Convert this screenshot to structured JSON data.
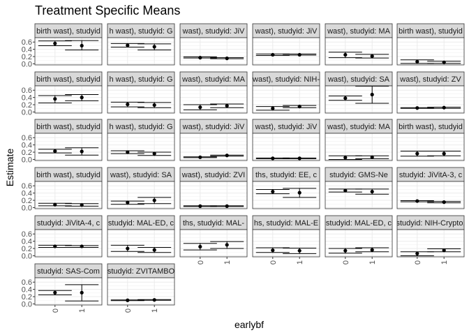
{
  "chart_data": {
    "type": "scatter",
    "title": "Treatment Specific Means",
    "xlabel": "earlybf",
    "ylabel": "Estimate",
    "x_categories": [
      "0",
      "1"
    ],
    "ylim": [
      -0.03,
      0.72
    ],
    "y_ticks": [
      "0.0",
      "0.2",
      "0.4",
      "0.6"
    ],
    "grid": true,
    "panels": [
      {
        "strip": "birth wast), studyid",
        "values": [
          {
            "x": "0",
            "y": 0.56,
            "lo": 0.5,
            "hi": 0.63
          },
          {
            "x": "1",
            "y": 0.5,
            "lo": 0.38,
            "hi": 0.64
          }
        ]
      },
      {
        "strip": "h wast), studyid: G",
        "values": [
          {
            "x": "0",
            "y": 0.51,
            "lo": 0.46,
            "hi": 0.56
          },
          {
            "x": "1",
            "y": 0.47,
            "lo": 0.38,
            "hi": 0.55
          }
        ]
      },
      {
        "strip": "wast), studyid: JiV",
        "values": [
          {
            "x": "0",
            "y": 0.17,
            "lo": 0.16,
            "hi": 0.19
          },
          {
            "x": "1",
            "y": 0.15,
            "lo": 0.14,
            "hi": 0.17
          }
        ]
      },
      {
        "strip": "wast), studyid: JiV",
        "values": [
          {
            "x": "0",
            "y": 0.25,
            "lo": 0.23,
            "hi": 0.27
          },
          {
            "x": "1",
            "y": 0.25,
            "lo": 0.24,
            "hi": 0.27
          }
        ]
      },
      {
        "strip": "wast), studyid: MA",
        "values": [
          {
            "x": "0",
            "y": 0.25,
            "lo": 0.17,
            "hi": 0.32
          },
          {
            "x": "1",
            "y": 0.21,
            "lo": 0.16,
            "hi": 0.26
          }
        ]
      },
      {
        "strip": "birth wast), studyid",
        "values": [
          {
            "x": "0",
            "y": 0.06,
            "lo": 0.01,
            "hi": 0.11
          },
          {
            "x": "1",
            "y": 0.04,
            "lo": 0.01,
            "hi": 0.07
          }
        ]
      },
      {
        "strip": "birth wast), studyid",
        "values": [
          {
            "x": "0",
            "y": 0.36,
            "lo": 0.25,
            "hi": 0.45
          },
          {
            "x": "1",
            "y": 0.4,
            "lo": 0.31,
            "hi": 0.48
          }
        ]
      },
      {
        "strip": "h wast), studyid: G",
        "values": [
          {
            "x": "0",
            "y": 0.21,
            "lo": 0.14,
            "hi": 0.27
          },
          {
            "x": "1",
            "y": 0.19,
            "lo": 0.12,
            "hi": 0.26
          }
        ]
      },
      {
        "strip": "wast), studyid: MA",
        "values": [
          {
            "x": "0",
            "y": 0.13,
            "lo": 0.06,
            "hi": 0.2
          },
          {
            "x": "1",
            "y": 0.17,
            "lo": 0.12,
            "hi": 0.22
          }
        ]
      },
      {
        "strip": "wast), studyid: NIH-",
        "values": [
          {
            "x": "0",
            "y": 0.1,
            "lo": 0.05,
            "hi": 0.15
          },
          {
            "x": "1",
            "y": 0.15,
            "lo": 0.12,
            "hi": 0.18
          }
        ]
      },
      {
        "strip": "wast), studyid: SA",
        "values": [
          {
            "x": "0",
            "y": 0.38,
            "lo": 0.32,
            "hi": 0.44
          },
          {
            "x": "1",
            "y": 0.48,
            "lo": 0.24,
            "hi": 0.71
          }
        ]
      },
      {
        "strip": "wast), studyid: ZV",
        "values": [
          {
            "x": "0",
            "y": 0.11,
            "lo": 0.1,
            "hi": 0.12
          },
          {
            "x": "1",
            "y": 0.12,
            "lo": 0.1,
            "hi": 0.13
          }
        ]
      },
      {
        "strip": "birth wast), studyid",
        "values": [
          {
            "x": "0",
            "y": 0.23,
            "lo": 0.18,
            "hi": 0.28
          },
          {
            "x": "1",
            "y": 0.22,
            "lo": 0.12,
            "hi": 0.32
          }
        ]
      },
      {
        "strip": "h wast), studyid: G",
        "values": [
          {
            "x": "0",
            "y": 0.2,
            "lo": 0.16,
            "hi": 0.24
          },
          {
            "x": "1",
            "y": 0.16,
            "lo": 0.11,
            "hi": 0.2
          }
        ]
      },
      {
        "strip": "wast), studyid: JiV",
        "values": [
          {
            "x": "0",
            "y": 0.06,
            "lo": 0.05,
            "hi": 0.07
          },
          {
            "x": "1",
            "y": 0.11,
            "lo": 0.09,
            "hi": 0.12
          }
        ]
      },
      {
        "strip": "wast), studyid: JiV",
        "values": [
          {
            "x": "0",
            "y": 0.03,
            "lo": 0.02,
            "hi": 0.04
          },
          {
            "x": "1",
            "y": 0.03,
            "lo": 0.02,
            "hi": 0.04
          }
        ]
      },
      {
        "strip": "wast), studyid: MA",
        "values": [
          {
            "x": "0",
            "y": 0.05,
            "lo": 0.0,
            "hi": 0.1
          },
          {
            "x": "1",
            "y": 0.06,
            "lo": 0.02,
            "hi": 0.1
          }
        ]
      },
      {
        "strip": "birth wast), studyid",
        "values": [
          {
            "x": "0",
            "y": 0.16,
            "lo": 0.09,
            "hi": 0.23
          },
          {
            "x": "1",
            "y": 0.16,
            "lo": 0.1,
            "hi": 0.23
          }
        ]
      },
      {
        "strip": "birth wast), studyid",
        "values": [
          {
            "x": "0",
            "y": 0.08,
            "lo": 0.05,
            "hi": 0.12
          },
          {
            "x": "1",
            "y": 0.07,
            "lo": 0.04,
            "hi": 0.11
          }
        ]
      },
      {
        "strip": "wast), studyid: SA",
        "values": [
          {
            "x": "0",
            "y": 0.14,
            "lo": 0.09,
            "hi": 0.18
          },
          {
            "x": "1",
            "y": 0.2,
            "lo": 0.11,
            "hi": 0.28
          }
        ]
      },
      {
        "strip": "wast), studyid: ZVI",
        "values": [
          {
            "x": "0",
            "y": 0.04,
            "lo": 0.03,
            "hi": 0.05
          },
          {
            "x": "1",
            "y": 0.04,
            "lo": 0.03,
            "hi": 0.05
          }
        ]
      },
      {
        "strip": "ths, studyid: EE, c",
        "values": [
          {
            "x": "0",
            "y": 0.44,
            "lo": 0.38,
            "hi": 0.5
          },
          {
            "x": "1",
            "y": 0.41,
            "lo": 0.28,
            "hi": 0.53
          }
        ]
      },
      {
        "strip": "studyid: GMS-Ne",
        "values": [
          {
            "x": "0",
            "y": 0.47,
            "lo": 0.43,
            "hi": 0.51
          },
          {
            "x": "1",
            "y": 0.44,
            "lo": 0.37,
            "hi": 0.51
          }
        ]
      },
      {
        "strip": "studyid: JiVitA-3, c",
        "values": [
          {
            "x": "0",
            "y": 0.18,
            "lo": 0.16,
            "hi": 0.19
          },
          {
            "x": "1",
            "y": 0.15,
            "lo": 0.13,
            "hi": 0.17
          }
        ]
      },
      {
        "strip": "studyid: JiVitA-4, c",
        "values": [
          {
            "x": "0",
            "y": 0.26,
            "lo": 0.23,
            "hi": 0.29
          },
          {
            "x": "1",
            "y": 0.26,
            "lo": 0.23,
            "hi": 0.28
          }
        ]
      },
      {
        "strip": "studyid: MAL-ED, c",
        "values": [
          {
            "x": "0",
            "y": 0.2,
            "lo": 0.12,
            "hi": 0.29
          },
          {
            "x": "1",
            "y": 0.16,
            "lo": 0.09,
            "hi": 0.23
          }
        ]
      },
      {
        "strip": "ths, studyid: MAL-",
        "values": [
          {
            "x": "0",
            "y": 0.25,
            "lo": 0.16,
            "hi": 0.34
          },
          {
            "x": "1",
            "y": 0.3,
            "lo": 0.2,
            "hi": 0.39
          }
        ]
      },
      {
        "strip": "hs, studyid: MAL-E",
        "values": [
          {
            "x": "0",
            "y": 0.15,
            "lo": 0.09,
            "hi": 0.22
          },
          {
            "x": "1",
            "y": 0.14,
            "lo": 0.06,
            "hi": 0.21
          }
        ]
      },
      {
        "strip": "studyid: MAL-ED, c",
        "values": [
          {
            "x": "0",
            "y": 0.14,
            "lo": 0.07,
            "hi": 0.2
          },
          {
            "x": "1",
            "y": 0.16,
            "lo": 0.11,
            "hi": 0.22
          }
        ]
      },
      {
        "strip": "studyid: NIH-Crypto,",
        "values": [
          {
            "x": "0",
            "y": 0.06,
            "lo": 0.0,
            "hi": 0.11
          },
          {
            "x": "1",
            "y": 0.15,
            "lo": 0.11,
            "hi": 0.19
          }
        ]
      },
      {
        "strip": "studyid: SAS-Com",
        "values": [
          {
            "x": "0",
            "y": 0.31,
            "lo": 0.25,
            "hi": 0.37
          },
          {
            "x": "1",
            "y": 0.31,
            "lo": 0.08,
            "hi": 0.53
          }
        ]
      },
      {
        "strip": "studyid: ZVITAMBO",
        "values": [
          {
            "x": "0",
            "y": 0.1,
            "lo": 0.09,
            "hi": 0.11
          },
          {
            "x": "1",
            "y": 0.11,
            "lo": 0.1,
            "hi": 0.12
          }
        ]
      }
    ]
  }
}
